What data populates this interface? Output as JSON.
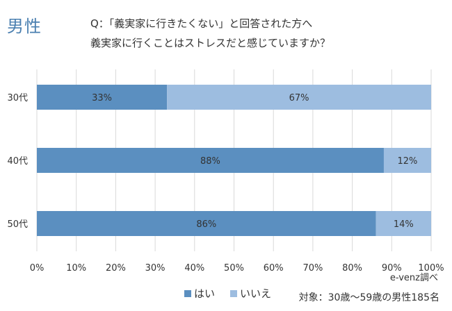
{
  "header": {
    "gender_label": "男性",
    "question_line1": "Q：「義実家に行きたくない」と回答された方へ",
    "question_line2": "義実家に行くことはストレスだと感じていますか？"
  },
  "footer": {
    "credit": "e-venz調べ",
    "target": "対象：30歳〜59歳の男性185名"
  },
  "colors": {
    "yes": "#5b8fc0",
    "no": "#9dbde0",
    "grid": "#d9d9d9"
  },
  "chart_data": {
    "type": "bar",
    "orientation": "horizontal",
    "stacked": "percent",
    "categories": [
      "30代",
      "40代",
      "50代"
    ],
    "series": [
      {
        "name": "はい",
        "values": [
          33,
          88,
          86
        ],
        "labels": [
          "33%",
          "88%",
          "86%"
        ]
      },
      {
        "name": "いいえ",
        "values": [
          67,
          12,
          14
        ],
        "labels": [
          "67%",
          "12%",
          "14%"
        ]
      }
    ],
    "xlim": [
      0,
      100
    ],
    "xticks": [
      "0%",
      "10%",
      "20%",
      "30%",
      "40%",
      "50%",
      "60%",
      "70%",
      "80%",
      "90%",
      "100%"
    ],
    "grid": "vertical",
    "legend_position": "bottom"
  }
}
